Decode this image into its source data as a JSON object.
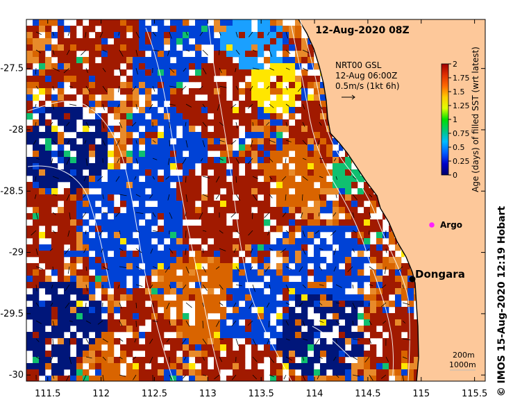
{
  "map": {
    "title": "12-Aug-2020 08Z",
    "current_vector": {
      "line1": "NRT00 GSL",
      "line2": "12-Aug 06:00Z",
      "line3": "0.5m/s (1kt 6h)"
    },
    "depth_legend": {
      "contour1": "200m",
      "contour2": "1000m"
    },
    "places": {
      "town": "Dongara",
      "float": "Argo"
    },
    "credit": "© IMOS 15-Aug-2020 12:19 Hobart",
    "x_axis": {
      "ticks": [
        "111.5",
        "112",
        "112.5",
        "113",
        "113.5",
        "114",
        "114.5",
        "115",
        "115.5"
      ],
      "range": [
        111.3,
        115.6
      ]
    },
    "y_axis": {
      "ticks": [
        "-27.5",
        "-28",
        "-28.5",
        "-29",
        "-29.5",
        "-30"
      ],
      "range": [
        -30.05,
        -27.1
      ]
    },
    "colorbar": {
      "title": "Age (days) of filled SST (wrt latest)",
      "range": [
        0,
        2
      ],
      "tick_labels": [
        "2",
        "1.75",
        "1.5",
        "1.25",
        "1",
        "0.75",
        "0.5",
        "0.25",
        "0"
      ],
      "colors": [
        "#00006b",
        "#0000c8",
        "#005eff",
        "#00bcff",
        "#00c878",
        "#00e000",
        "#e0ff00",
        "#ffcc00",
        "#ff6a00",
        "#e03000",
        "#a00000"
      ]
    },
    "colors": {
      "land": "#fdc89a",
      "coast": "#000000",
      "no_data": "#ffffff",
      "dark_red": "#a11a00",
      "orange": "#d96400",
      "light_orange": "#e88a2a",
      "dark_blue": "#00167a",
      "blue": "#0042d6",
      "light_blue": "#1aa0ff",
      "yellow": "#ffe600",
      "green": "#10c070",
      "argo_marker": "#ff20ff"
    }
  }
}
